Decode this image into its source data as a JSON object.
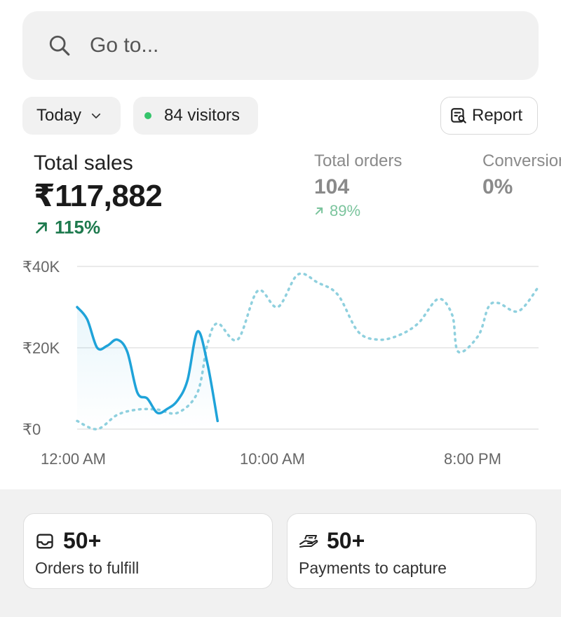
{
  "search": {
    "placeholder": "Go to..."
  },
  "filters": {
    "date_label": "Today",
    "visitors_label": "84 visitors",
    "report_label": "Report"
  },
  "metrics": {
    "total_sales": {
      "label": "Total sales",
      "value": "₹117,882",
      "change": "115%"
    },
    "total_orders": {
      "label": "Total orders",
      "value": "104",
      "change": "89%"
    },
    "conversion": {
      "label": "Conversion",
      "value": "0%"
    }
  },
  "colors": {
    "today_line": "#1fa3d9",
    "compare_line": "#8fd0de",
    "positive": "#1e7a4e",
    "visitor_dot": "#35c46b"
  },
  "chart_data": {
    "type": "line",
    "ylabel": "",
    "xlabel": "",
    "y_ticks": [
      "₹0",
      "₹20K",
      "₹40K"
    ],
    "x_ticks": [
      "12:00 AM",
      "10:00 AM",
      "8:00 PM"
    ],
    "ylim": [
      0,
      40000
    ],
    "xlim": [
      0,
      23
    ],
    "grid": true,
    "series": [
      {
        "style": "solid",
        "x": [
          0,
          0.5,
          1,
          1.5,
          2,
          2.5,
          3,
          3.5,
          4,
          4.5,
          5,
          5.5,
          6,
          6.5,
          7
        ],
        "values": [
          30000,
          27000,
          20000,
          20500,
          22000,
          19000,
          9000,
          7500,
          4000,
          5000,
          7000,
          12000,
          24000,
          16000,
          2000
        ]
      },
      {
        "style": "dotted",
        "x": [
          0,
          1,
          2,
          3,
          4,
          5,
          6,
          6.5,
          7,
          8,
          9,
          10,
          11,
          12,
          13,
          14,
          15,
          16,
          17,
          18,
          18.7,
          19,
          20,
          20.5,
          21,
          22,
          23
        ],
        "values": [
          2000,
          0,
          3500,
          4800,
          4800,
          4000,
          9000,
          21000,
          26000,
          22000,
          34000,
          30000,
          38000,
          36000,
          33000,
          24000,
          22000,
          23000,
          26000,
          32000,
          28000,
          19000,
          23000,
          30000,
          31000,
          29000,
          35000
        ]
      }
    ]
  },
  "cards": [
    {
      "icon": "inbox-icon",
      "count": "50+",
      "label": "Orders to fulfill"
    },
    {
      "icon": "hand-payment-icon",
      "count": "50+",
      "label": "Payments to capture"
    }
  ]
}
